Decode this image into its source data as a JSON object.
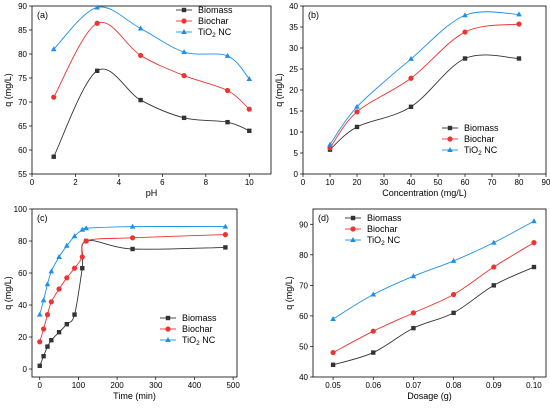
{
  "colors": {
    "biomass": "#333333",
    "biochar": "#ee3333",
    "tio2": "#1e90e6"
  },
  "chart_data": [
    {
      "panel_label": "(a)",
      "type": "line",
      "xlabel": "pH",
      "ylabel": "q (mg/L)",
      "xlim": [
        0,
        11
      ],
      "ylim": [
        55,
        90
      ],
      "xticks": [
        "0",
        "2",
        "4",
        "6",
        "8",
        "10"
      ],
      "yticks": [
        "55",
        "60",
        "65",
        "70",
        "75",
        "80",
        "85",
        "90"
      ],
      "legend_position": "top-right",
      "x": [
        1,
        3,
        5,
        7,
        9,
        10
      ],
      "series": [
        {
          "name": "Biomass",
          "marker": "square",
          "values": [
            58.6,
            76.5,
            70.4,
            66.7,
            65.8,
            64.0
          ]
        },
        {
          "name": "Biochar",
          "marker": "circle",
          "values": [
            71.0,
            86.4,
            79.7,
            75.5,
            72.4,
            68.5
          ]
        },
        {
          "name": "TiO2 NC",
          "marker": "triangle",
          "values": [
            81.0,
            89.7,
            85.3,
            80.4,
            79.6,
            74.8
          ]
        }
      ]
    },
    {
      "panel_label": "(b)",
      "type": "line",
      "xlabel": "Concentration (mg/L)",
      "ylabel": "q (mg/L)",
      "xlim": [
        0,
        90
      ],
      "ylim": [
        0,
        40
      ],
      "xticks": [
        "0",
        "10",
        "20",
        "30",
        "40",
        "50",
        "60",
        "70",
        "80",
        "90"
      ],
      "yticks": [
        "0",
        "5",
        "10",
        "15",
        "20",
        "25",
        "30",
        "35",
        "40"
      ],
      "legend_position": "bottom-right",
      "x": [
        10,
        20,
        40,
        60,
        80
      ],
      "series": [
        {
          "name": "Biomass",
          "marker": "square",
          "values": [
            5.8,
            11.2,
            16.0,
            27.5,
            27.5
          ]
        },
        {
          "name": "Biochar",
          "marker": "circle",
          "values": [
            6.2,
            14.8,
            22.8,
            33.8,
            35.7
          ]
        },
        {
          "name": "TiO2 NC",
          "marker": "triangle",
          "values": [
            7.0,
            16.0,
            27.4,
            37.8,
            38.0
          ]
        }
      ]
    },
    {
      "panel_label": "(c)",
      "type": "line",
      "xlabel": "Time (min)",
      "ylabel": "q (mg/L)",
      "xlim": [
        -20,
        510
      ],
      "ylim": [
        -5,
        100
      ],
      "xticks": [
        "0",
        "100",
        "200",
        "300",
        "400",
        "500"
      ],
      "yticks": [
        "0",
        "20",
        "40",
        "60",
        "80",
        "100"
      ],
      "legend_position": "bottom-right",
      "x": [
        0,
        10,
        20,
        30,
        50,
        70,
        90,
        110,
        120,
        240,
        480
      ],
      "series": [
        {
          "name": "Biomass",
          "marker": "square",
          "values": [
            2,
            8,
            14,
            18,
            23,
            28,
            34,
            63,
            80,
            75,
            76
          ]
        },
        {
          "name": "Biochar",
          "marker": "circle",
          "values": [
            17,
            25,
            34,
            42,
            50,
            57,
            63,
            70,
            80,
            82,
            84
          ]
        },
        {
          "name": "TiO2 NC",
          "marker": "triangle",
          "values": [
            34,
            43,
            53,
            61,
            70,
            77,
            83,
            87,
            88,
            89,
            89
          ]
        }
      ]
    },
    {
      "panel_label": "(d)",
      "type": "line",
      "xlabel": "Dosage (g)",
      "ylabel": "q (mg/L)",
      "xlim": [
        0.045,
        0.103
      ],
      "ylim": [
        40,
        95
      ],
      "xticks": [
        "0.05",
        "0.06",
        "0.07",
        "0.08",
        "0.09",
        "0.10"
      ],
      "yticks": [
        "40",
        "50",
        "60",
        "70",
        "80",
        "90"
      ],
      "legend_position": "top-left",
      "x": [
        0.05,
        0.06,
        0.07,
        0.08,
        0.09,
        0.1
      ],
      "series": [
        {
          "name": "Biomass",
          "marker": "square",
          "values": [
            44,
            48,
            56,
            61,
            70,
            76
          ]
        },
        {
          "name": "Biochar",
          "marker": "circle",
          "values": [
            48,
            55,
            61,
            67,
            76,
            84
          ]
        },
        {
          "name": "TiO2 NC",
          "marker": "triangle",
          "values": [
            59,
            67,
            73,
            78,
            84,
            91
          ]
        }
      ]
    }
  ]
}
